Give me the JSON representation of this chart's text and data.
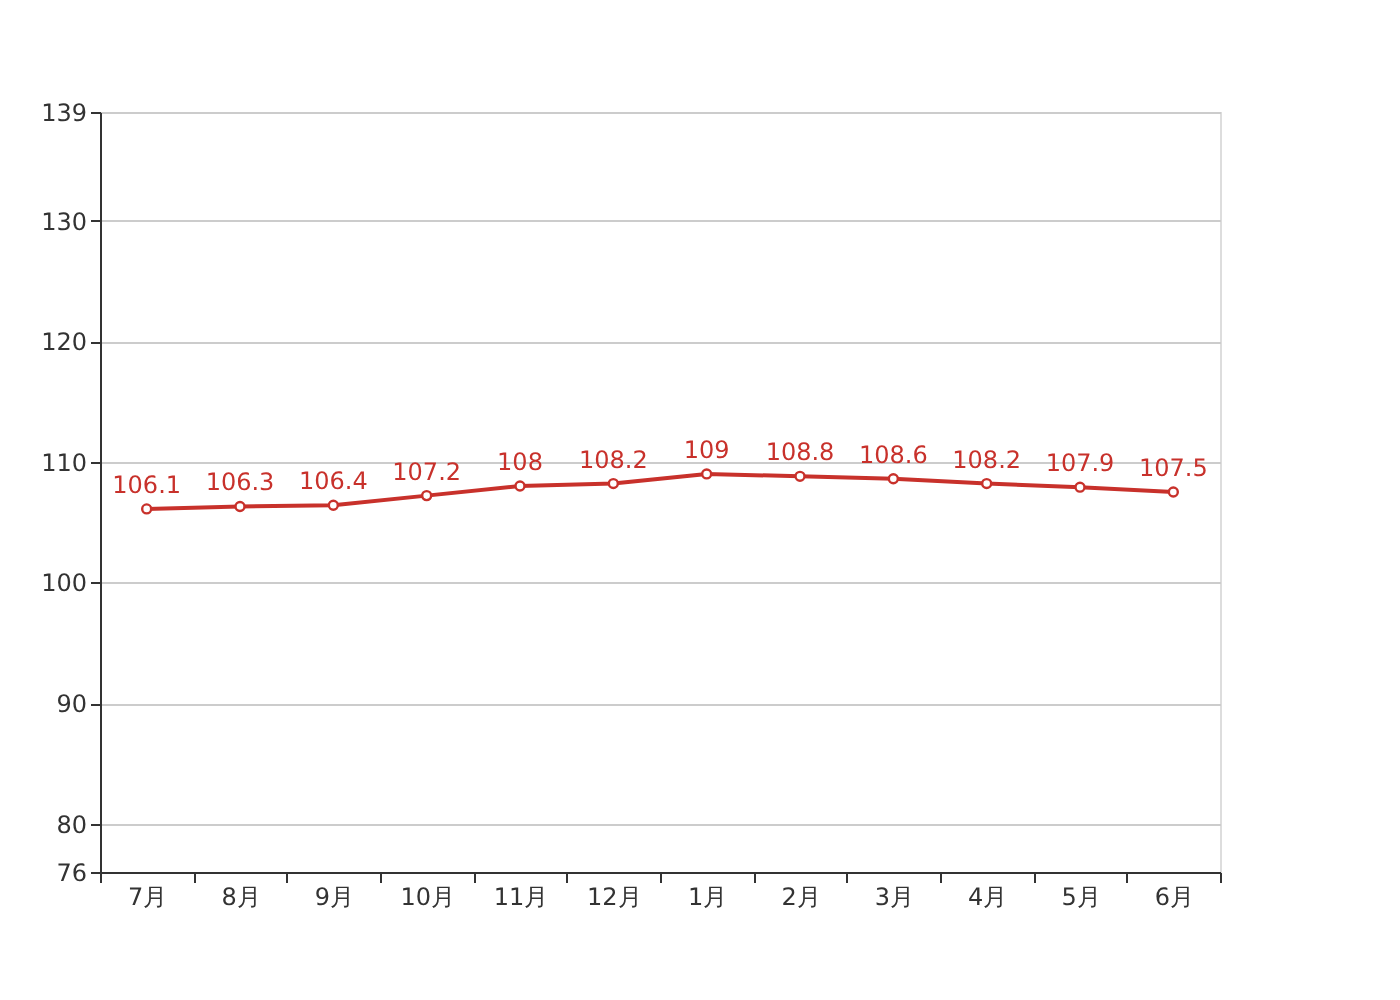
{
  "chart_data": {
    "type": "line",
    "categories": [
      "7月",
      "8月",
      "9月",
      "10月",
      "11月",
      "12月",
      "1月",
      "2月",
      "3月",
      "4月",
      "5月",
      "6月"
    ],
    "series": [
      {
        "color": "#c8312b",
        "values": [
          106.1,
          106.3,
          106.4,
          107.2,
          108,
          108.2,
          109,
          108.8,
          108.6,
          108.2,
          107.9,
          107.5
        ]
      }
    ],
    "ylim": [
      76,
      139
    ],
    "yticks": [
      76,
      80,
      90,
      100,
      110,
      120,
      130,
      139
    ],
    "grid": "y",
    "marker": "circle",
    "line_style": "solid",
    "data_labels": true
  }
}
